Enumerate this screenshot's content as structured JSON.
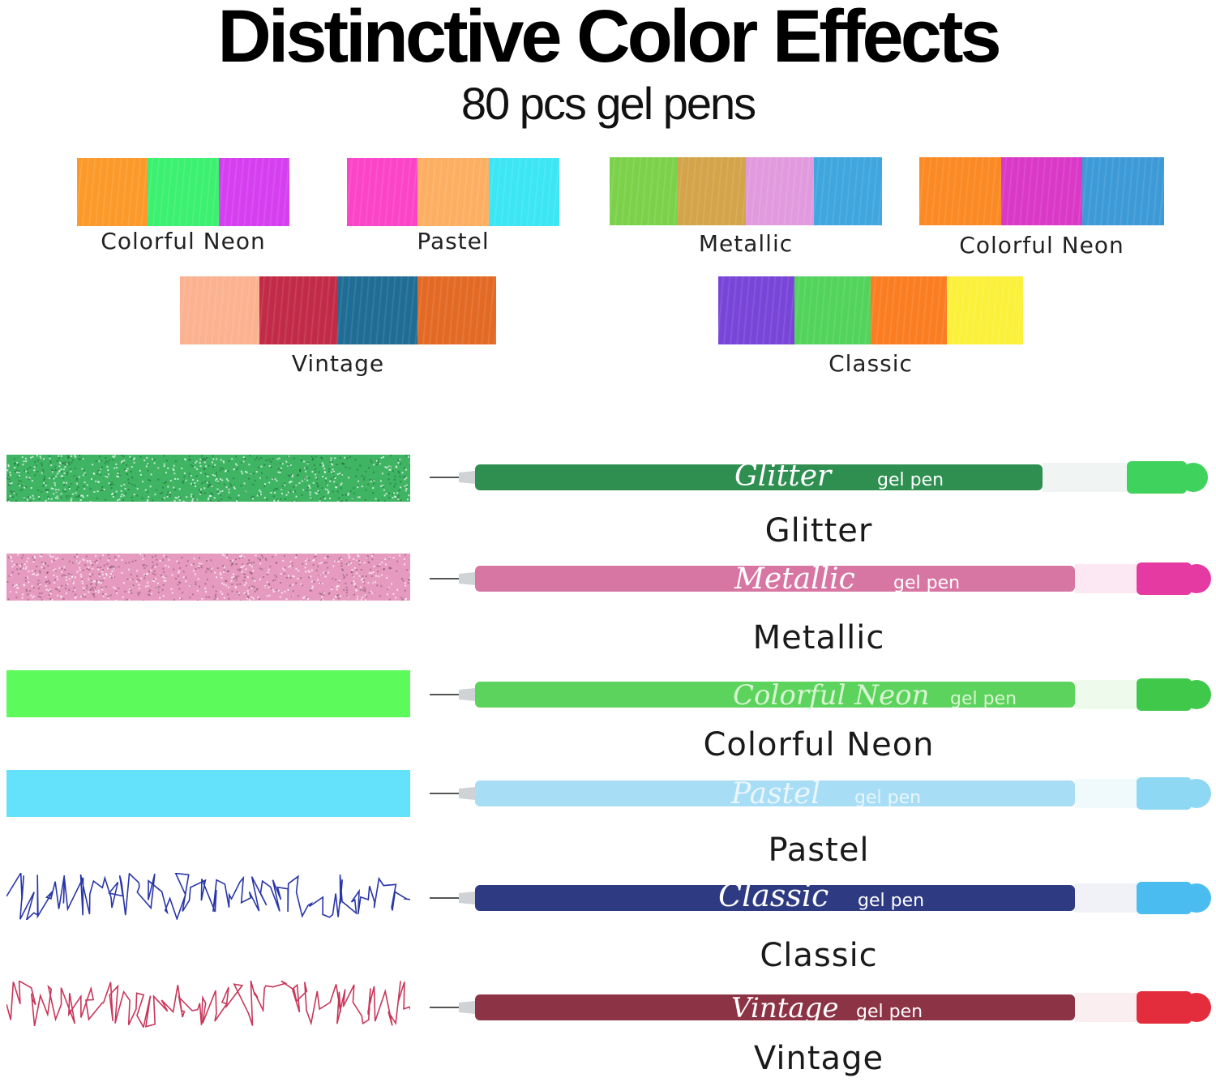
{
  "header": {
    "title": "Distinctive Color Effects",
    "subtitle": "80 pcs gel pens"
  },
  "swatch_groups": [
    {
      "label": "Colorful Neon",
      "colors": [
        "#fb9a2a",
        "#3cf070",
        "#d63ff0"
      ]
    },
    {
      "label": "Pastel",
      "colors": [
        "#fb44c8",
        "#fcaf62",
        "#3ce6f4"
      ]
    },
    {
      "label": "Metallic",
      "colors": [
        "#7bd24a",
        "#d4a44a",
        "#e19ade",
        "#3fa6de"
      ]
    },
    {
      "label": "Colorful Neon",
      "colors": [
        "#fb8a24",
        "#da38c6",
        "#3d9ad6"
      ]
    },
    {
      "label": "Vintage",
      "colors": [
        "#fbb290",
        "#c22b47",
        "#1f6c95",
        "#e36a24"
      ]
    },
    {
      "label": "Classic",
      "colors": [
        "#7845d8",
        "#52d35c",
        "#fb7d22",
        "#fbf03a"
      ]
    }
  ],
  "pens": [
    {
      "label": "Glitter",
      "script": "Glitter",
      "tag": "gel pen",
      "body": "#2e8f50",
      "cap": "#3fd25c",
      "band": "#3fb564",
      "pattern": "glitter"
    },
    {
      "label": "Metallic",
      "script": "Metallic",
      "tag": "gel pen",
      "body": "#d776a3",
      "cap": "#e53aa2",
      "band": "#e79ac0",
      "pattern": "glitter"
    },
    {
      "label": "Colorful Neon",
      "script": "Colorful Neon",
      "tag": "gel pen",
      "body": "#5cd35c",
      "cap": "#3fc84a",
      "band": "#5dfa5b",
      "pattern": "solid"
    },
    {
      "label": "Pastel",
      "script": "Pastel",
      "tag": "gel pen",
      "body": "#a8ddf6",
      "cap": "#8ed8f3",
      "band": "#64e2fb",
      "pattern": "solid"
    },
    {
      "label": "Classic",
      "script": "Classic",
      "tag": "gel pen",
      "body": "#2e3b82",
      "cap": "#4bbcf0",
      "band": "#2935a8",
      "pattern": "scribble"
    },
    {
      "label": "Vintage",
      "script": "Vintage",
      "tag": "gel pen",
      "body": "#8c3446",
      "cap": "#e42d3c",
      "band": "#c8365a",
      "pattern": "scribble"
    }
  ]
}
